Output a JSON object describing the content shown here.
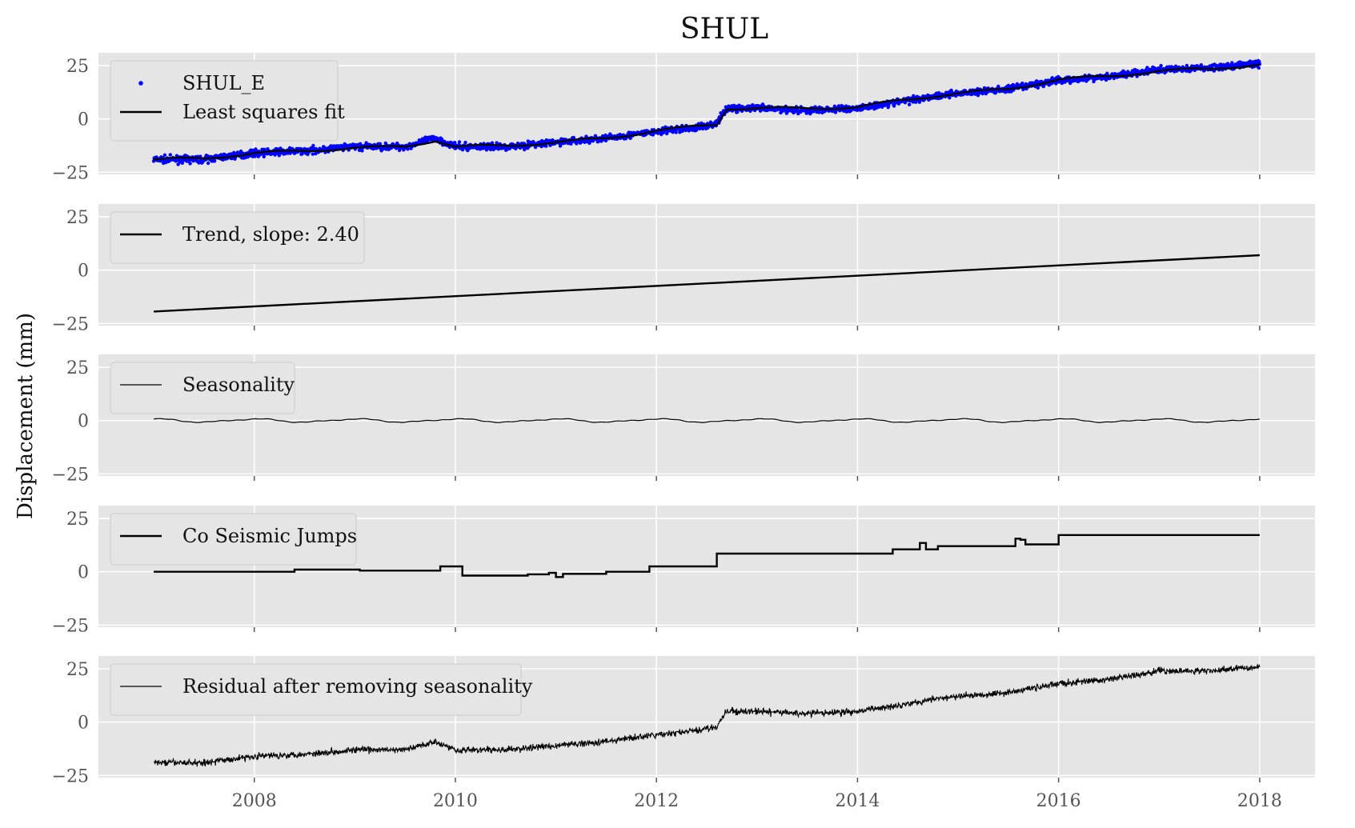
{
  "chart_data": {
    "type": "line",
    "title": "SHUL",
    "ylabel": "Displacement (mm)",
    "xlabel": "",
    "xlim": [
      2006.45,
      2018.55
    ],
    "ylim": [
      -26,
      31
    ],
    "x_ticks": [
      2008,
      2010,
      2012,
      2014,
      2016,
      2018
    ],
    "x_tick_labels": [
      "2008",
      "2010",
      "2012",
      "2014",
      "2016",
      "2018"
    ],
    "y_ticks": [
      -25,
      0,
      25
    ],
    "y_tick_labels": [
      "−25",
      "0",
      "25"
    ],
    "grid": true,
    "legend_placement": "upper-left",
    "colors": {
      "observations": "#0000ff",
      "fit": "#000000",
      "panel_bg": "#e5e5e5"
    },
    "panels": [
      {
        "name": "observations-and-fit",
        "series": [
          {
            "name": "SHUL_E",
            "style": "points",
            "color": "#0000ff",
            "x": [
              2007.0,
              2007.5,
              2008.0,
              2008.5,
              2009.0,
              2009.5,
              2009.8,
              2010.0,
              2010.5,
              2011.0,
              2011.5,
              2012.0,
              2012.4,
              2012.6,
              2012.7,
              2013.0,
              2013.5,
              2014.0,
              2014.4,
              2014.8,
              2015.0,
              2015.5,
              2016.0,
              2016.5,
              2017.0,
              2017.5,
              2018.0
            ],
            "y": [
              -19,
              -19,
              -16,
              -15,
              -13,
              -13,
              -9,
              -13,
              -13,
              -11,
              -9,
              -6,
              -4,
              -2,
              5,
              5,
              4,
              5,
              8,
              11,
              12,
              14,
              18,
              20,
              23,
              24,
              26
            ]
          },
          {
            "name": "Least squares fit",
            "style": "line",
            "color": "#000000",
            "x": [
              2007.0,
              2007.5,
              2008.0,
              2008.5,
              2009.0,
              2009.5,
              2009.8,
              2010.0,
              2010.5,
              2011.0,
              2011.5,
              2012.0,
              2012.4,
              2012.6,
              2012.7,
              2013.0,
              2013.5,
              2014.0,
              2014.4,
              2014.8,
              2015.0,
              2015.5,
              2016.0,
              2016.5,
              2017.0,
              2017.5,
              2018.0
            ],
            "y": [
              -19,
              -18.5,
              -16,
              -15,
              -13.5,
              -13,
              -10,
              -13,
              -12.5,
              -11,
              -9,
              -5.5,
              -3.5,
              -2.5,
              5,
              5,
              5,
              5.5,
              8.5,
              11,
              12,
              14,
              18.5,
              20,
              22.5,
              23.5,
              25.5
            ]
          }
        ]
      },
      {
        "name": "trend",
        "series": [
          {
            "name": "Trend, slope: 2.40",
            "style": "line",
            "color": "#000000",
            "x": [
              2007.0,
              2018.0
            ],
            "y": [
              -19.4,
              7.0
            ]
          }
        ]
      },
      {
        "name": "seasonality",
        "series": [
          {
            "name": "Seasonality",
            "style": "line-thin",
            "color": "#000000",
            "x_start": 2007.0,
            "x_end": 2018.0,
            "amplitude": 0.7,
            "period": 1.0
          }
        ]
      },
      {
        "name": "co-seismic-jumps",
        "series": [
          {
            "name": "Co Seismic Jumps",
            "style": "step",
            "color": "#000000",
            "x": [
              2007.0,
              2008.4,
              2009.05,
              2009.85,
              2010.07,
              2010.72,
              2010.93,
              2011.0,
              2011.07,
              2011.5,
              2011.93,
              2012.6,
              2014.35,
              2014.62,
              2014.68,
              2014.8,
              2015.57,
              2015.62,
              2015.67,
              2016.0,
              2018.0
            ],
            "y": [
              0,
              1,
              0.5,
              2.5,
              -1.8,
              -1.2,
              -0.5,
              -2.5,
              -1.0,
              0,
              2.5,
              8.5,
              10.5,
              13.5,
              10.5,
              12,
              15.5,
              15,
              12.8,
              17.2,
              17.2
            ]
          }
        ]
      },
      {
        "name": "residual",
        "series": [
          {
            "name": "Residual after removing seasonality",
            "style": "line-noisy",
            "color": "#000000",
            "x": [
              2007.0,
              2007.5,
              2008.0,
              2008.5,
              2009.0,
              2009.5,
              2009.8,
              2010.0,
              2010.5,
              2011.0,
              2011.5,
              2012.0,
              2012.4,
              2012.6,
              2012.7,
              2013.0,
              2013.5,
              2014.0,
              2014.4,
              2014.8,
              2015.0,
              2015.5,
              2016.0,
              2016.5,
              2017.0,
              2017.5,
              2018.0
            ],
            "y": [
              -19,
              -19,
              -16,
              -15,
              -13,
              -13,
              -9,
              -13,
              -13,
              -11,
              -9,
              -6,
              -4,
              -2,
              5,
              5,
              4,
              5,
              8,
              11,
              12,
              14,
              18,
              20,
              24,
              24,
              26
            ]
          }
        ]
      }
    ]
  }
}
